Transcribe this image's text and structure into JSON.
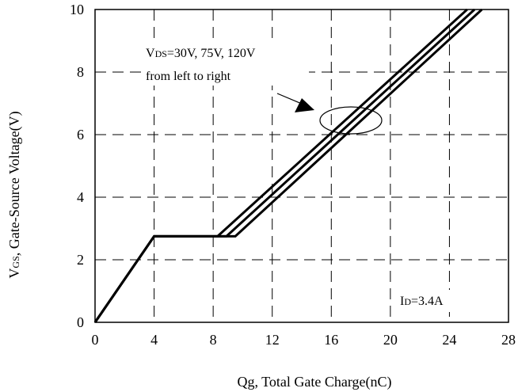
{
  "chart_data": {
    "type": "line",
    "xlabel": "Qg, Total Gate Charge(nC)",
    "ylabel": {
      "main": "V",
      "sub": "GS",
      "rest": ", Gate-Source Voltage(V)"
    },
    "xlim": [
      0,
      28
    ],
    "ylim": [
      0,
      10
    ],
    "x_ticks": [
      "0",
      "4",
      "8",
      "12",
      "16",
      "20",
      "24",
      "28"
    ],
    "y_ticks": [
      "0",
      "2",
      "4",
      "6",
      "8",
      "10"
    ],
    "grid": "dashed",
    "series": [
      {
        "x": [
          0,
          4,
          8.3,
          25.2
        ],
        "y": [
          0,
          2.75,
          2.75,
          10
        ]
      },
      {
        "x": [
          0,
          4,
          8.9,
          25.7
        ],
        "y": [
          0,
          2.75,
          2.75,
          10
        ]
      },
      {
        "x": [
          0,
          4,
          9.5,
          26.2
        ],
        "y": [
          0,
          2.75,
          2.75,
          10
        ]
      }
    ],
    "annotations": {
      "vds": {
        "prefix": "V",
        "sub": "DS",
        "rest": "=30V, 75V, 120V",
        "line2": "from left to right"
      },
      "id": {
        "prefix": "I",
        "sub": "D",
        "rest": "=3.4A"
      }
    }
  }
}
